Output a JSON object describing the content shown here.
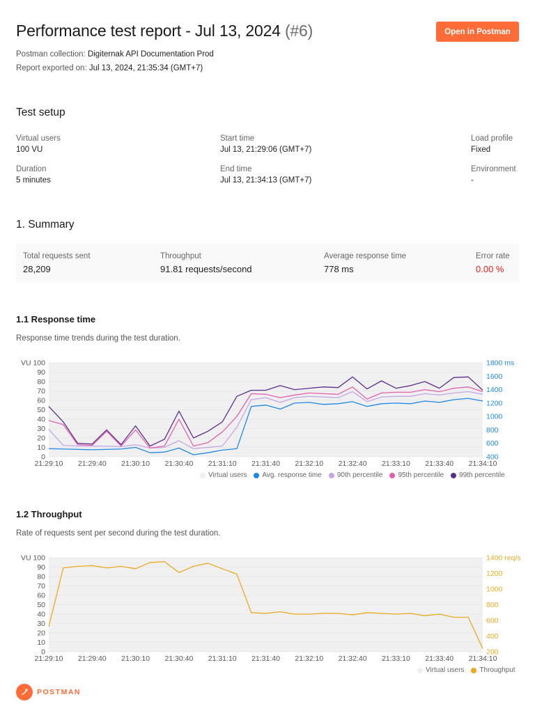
{
  "header": {
    "title": "Performance test report - Jul 13, 2024",
    "run": "(#6)",
    "open_button": "Open in Postman",
    "collection_label": "Postman collection:",
    "collection_value": "Digiternak API Documentation Prod",
    "exported_label": "Report exported on:",
    "exported_value": "Jul 13, 2024, 21:35:34 (GMT+7)"
  },
  "setup": {
    "heading": "Test setup",
    "virtual_users_label": "Virtual users",
    "virtual_users_value": "100 VU",
    "duration_label": "Duration",
    "duration_value": "5 minutes",
    "start_label": "Start time",
    "start_value": "Jul 13, 21:29:06 (GMT+7)",
    "end_label": "End time",
    "end_value": "Jul 13, 21:34:13 (GMT+7)",
    "load_profile_label": "Load profile",
    "load_profile_value": "Fixed",
    "environment_label": "Environment",
    "environment_value": "-"
  },
  "summary": {
    "heading": "1. Summary",
    "total_label": "Total requests sent",
    "total_value": "28,209",
    "throughput_label": "Throughput",
    "throughput_value": "91.81 requests/second",
    "avg_label": "Average response time",
    "avg_value": "778 ms",
    "error_label": "Error rate",
    "error_value": "0.00 %"
  },
  "response_section": {
    "heading": "1.1 Response time",
    "description": "Response time trends during the test duration."
  },
  "throughput_section": {
    "heading": "1.2 Throughput",
    "description": "Rate of requests sent per second during the test duration."
  },
  "footer": {
    "logo_text": "POSTMAN"
  },
  "colors": {
    "accent": "#ff6c37",
    "virtual_users": "#e6e6e6",
    "avg": "#1f88e5",
    "p90": "#c4a6e8",
    "p95": "#e65faa",
    "p99": "#5b2f8e",
    "throughput": "#eba91d",
    "error": "#eb2013"
  },
  "chart_data": [
    {
      "type": "line",
      "x": [
        "21:29:10",
        "21:29:20",
        "21:29:30",
        "21:29:40",
        "21:29:50",
        "21:30:00",
        "21:30:10",
        "21:30:20",
        "21:30:30",
        "21:30:40",
        "21:30:50",
        "21:31:00",
        "21:31:10",
        "21:31:20",
        "21:31:30",
        "21:31:40",
        "21:31:50",
        "21:32:00",
        "21:32:10",
        "21:32:20",
        "21:32:30",
        "21:32:40",
        "21:32:50",
        "21:33:00",
        "21:33:10",
        "21:33:20",
        "21:33:30",
        "21:33:40",
        "21:33:50",
        "21:34:00",
        "21:34:10"
      ],
      "x_ticks": [
        "21:29:10",
        "21:29:40",
        "21:30:10",
        "21:30:40",
        "21:31:10",
        "21:31:40",
        "21:32:10",
        "21:32:40",
        "21:33:10",
        "21:33:40",
        "21:34:10"
      ],
      "y_left_label": "VU",
      "y_left_ticks": [
        "100",
        "90",
        "80",
        "70",
        "60",
        "50",
        "40",
        "30",
        "20",
        "10",
        "0"
      ],
      "y_left_lim": [
        0,
        100
      ],
      "y_right_ticks": [
        "1800 ms",
        "1600",
        "1400",
        "1200",
        "1000",
        "800",
        "600",
        "400"
      ],
      "y_right_lim": [
        400,
        1800
      ],
      "series": [
        {
          "name": "Virtual users",
          "axis": "left",
          "values": [
            100,
            100,
            100,
            100,
            100,
            100,
            100,
            100,
            100,
            100,
            100,
            100,
            100,
            100,
            100,
            100,
            100,
            100,
            100,
            100,
            100,
            100,
            100,
            100,
            100,
            100,
            100,
            100,
            100,
            100,
            100
          ]
        },
        {
          "name": "Avg. response time",
          "axis": "right",
          "values": [
            520,
            515,
            510,
            505,
            510,
            515,
            540,
            460,
            470,
            530,
            430,
            460,
            500,
            520,
            1150,
            1170,
            1110,
            1200,
            1210,
            1180,
            1190,
            1220,
            1150,
            1190,
            1200,
            1190,
            1230,
            1210,
            1250,
            1270,
            1230
          ]
        },
        {
          "name": "90th percentile",
          "axis": "right",
          "values": [
            810,
            570,
            560,
            560,
            560,
            550,
            580,
            530,
            540,
            640,
            520,
            540,
            560,
            840,
            1250,
            1280,
            1210,
            1280,
            1300,
            1290,
            1280,
            1370,
            1220,
            1290,
            1300,
            1300,
            1340,
            1320,
            1350,
            1370,
            1330
          ]
        },
        {
          "name": "95th percentile",
          "axis": "right",
          "values": [
            940,
            880,
            580,
            570,
            780,
            560,
            800,
            530,
            560,
            960,
            560,
            610,
            770,
            1000,
            1340,
            1330,
            1280,
            1320,
            1350,
            1340,
            1330,
            1440,
            1260,
            1350,
            1360,
            1360,
            1400,
            1370,
            1420,
            1440,
            1370
          ]
        },
        {
          "name": "99th percentile",
          "axis": "right",
          "values": [
            1150,
            920,
            600,
            590,
            800,
            580,
            860,
            560,
            660,
            1080,
            680,
            780,
            920,
            1300,
            1390,
            1390,
            1460,
            1400,
            1420,
            1440,
            1430,
            1590,
            1410,
            1530,
            1420,
            1460,
            1520,
            1420,
            1580,
            1590,
            1390
          ]
        }
      ]
    },
    {
      "type": "line",
      "x": [
        "21:29:10",
        "21:29:20",
        "21:29:30",
        "21:29:40",
        "21:29:50",
        "21:30:00",
        "21:30:10",
        "21:30:20",
        "21:30:30",
        "21:30:40",
        "21:30:50",
        "21:31:00",
        "21:31:10",
        "21:31:20",
        "21:31:30",
        "21:31:40",
        "21:31:50",
        "21:32:00",
        "21:32:10",
        "21:32:20",
        "21:32:30",
        "21:32:40",
        "21:32:50",
        "21:33:00",
        "21:33:10",
        "21:33:20",
        "21:33:30",
        "21:33:40",
        "21:33:50",
        "21:34:00",
        "21:34:10"
      ],
      "x_ticks": [
        "21:29:10",
        "21:29:40",
        "21:30:10",
        "21:30:40",
        "21:31:10",
        "21:31:40",
        "21:32:10",
        "21:32:40",
        "21:33:10",
        "21:33:40",
        "21:34:10"
      ],
      "y_left_label": "VU",
      "y_left_ticks": [
        "100",
        "90",
        "80",
        "70",
        "60",
        "50",
        "40",
        "30",
        "20",
        "10",
        "0"
      ],
      "y_left_lim": [
        0,
        100
      ],
      "y_right_ticks": [
        "1400 req/s",
        "1200",
        "1000",
        "800",
        "600",
        "400",
        "200"
      ],
      "y_right_lim": [
        200,
        1400
      ],
      "series": [
        {
          "name": "Virtual users",
          "axis": "left",
          "values": [
            100,
            100,
            100,
            100,
            100,
            100,
            100,
            100,
            100,
            100,
            100,
            100,
            100,
            100,
            100,
            100,
            100,
            100,
            100,
            100,
            100,
            100,
            100,
            100,
            100,
            100,
            100,
            100,
            100,
            100,
            100
          ]
        },
        {
          "name": "Throughput",
          "axis": "right",
          "values": [
            520,
            1270,
            1290,
            1300,
            1270,
            1290,
            1260,
            1340,
            1350,
            1210,
            1290,
            1330,
            1260,
            1190,
            700,
            690,
            710,
            680,
            680,
            690,
            690,
            670,
            700,
            690,
            680,
            690,
            660,
            680,
            640,
            640,
            240
          ]
        }
      ]
    }
  ]
}
